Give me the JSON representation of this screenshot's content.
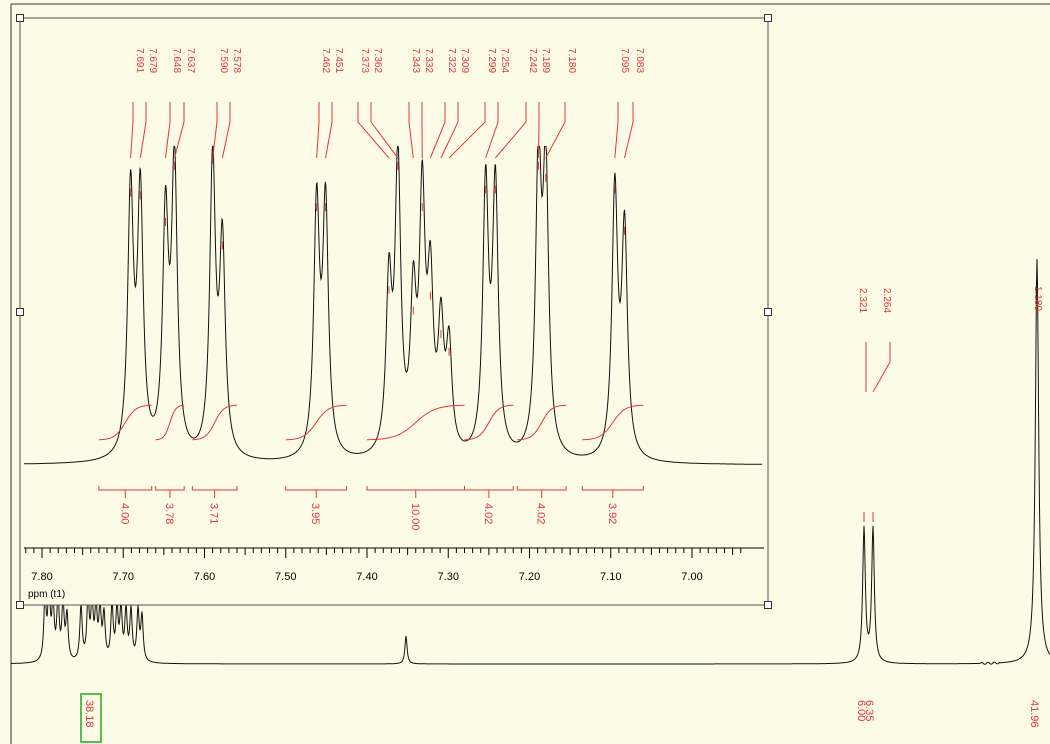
{
  "colors": {
    "background": "#fcfce6",
    "spectrum": "#111111",
    "annotation": "#e8333a",
    "frame": "#555555",
    "highlight_box": "#22aa22"
  },
  "chart_data": [
    {
      "type": "line",
      "title": "",
      "xlabel": "ppm (t1)",
      "ylabel": "",
      "x_reversed": true,
      "xlim": [
        7.82,
        6.93
      ],
      "ticks": [
        "7.80",
        "7.70",
        "7.60",
        "7.50",
        "7.40",
        "7.30",
        "7.20",
        "7.10",
        "7.00"
      ],
      "tick_values": [
        7.8,
        7.7,
        7.6,
        7.5,
        7.4,
        7.3,
        7.2,
        7.1,
        7.0
      ],
      "grid": false,
      "peak_labels": [
        "7.691",
        "7.679",
        "7.648",
        "7.637",
        "7.590",
        "7.578",
        "7.462",
        "7.451",
        "7.373",
        "7.362",
        "7.343",
        "7.332",
        "7.322",
        "7.309",
        "7.299",
        "7.254",
        "7.242",
        "7.189",
        "7.180",
        "7.095",
        "7.083"
      ],
      "peaks": [
        {
          "ppm": 7.691,
          "height": 0.89
        },
        {
          "ppm": 7.679,
          "height": 0.88
        },
        {
          "ppm": 7.648,
          "height": 0.79
        },
        {
          "ppm": 7.637,
          "height": 0.98
        },
        {
          "ppm": 7.59,
          "height": 1.0
        },
        {
          "ppm": 7.578,
          "height": 0.71
        },
        {
          "ppm": 7.462,
          "height": 0.84
        },
        {
          "ppm": 7.451,
          "height": 0.84
        },
        {
          "ppm": 7.373,
          "height": 0.56
        },
        {
          "ppm": 7.362,
          "height": 0.98
        },
        {
          "ppm": 7.343,
          "height": 0.49
        },
        {
          "ppm": 7.332,
          "height": 0.84
        },
        {
          "ppm": 7.322,
          "height": 0.54
        },
        {
          "ppm": 7.309,
          "height": 0.41
        },
        {
          "ppm": 7.299,
          "height": 0.35
        },
        {
          "ppm": 7.254,
          "height": 0.9
        },
        {
          "ppm": 7.242,
          "height": 0.9
        },
        {
          "ppm": 7.189,
          "height": 0.98
        },
        {
          "ppm": 7.18,
          "height": 0.94
        },
        {
          "ppm": 7.095,
          "height": 0.9
        },
        {
          "ppm": 7.083,
          "height": 0.76
        }
      ],
      "integrals": [
        {
          "value": "4.00",
          "from": 7.73,
          "to": 7.665
        },
        {
          "value": "3.78",
          "from": 7.66,
          "to": 7.625
        },
        {
          "value": "3.71",
          "from": 7.615,
          "to": 7.56
        },
        {
          "value": "3.95",
          "from": 7.5,
          "to": 7.425
        },
        {
          "value": "10.00",
          "from": 7.4,
          "to": 7.28
        },
        {
          "value": "4.02",
          "from": 7.28,
          "to": 7.22
        },
        {
          "value": "4.02",
          "from": 7.215,
          "to": 7.155
        },
        {
          "value": "3.92",
          "from": 7.135,
          "to": 7.06
        }
      ]
    },
    {
      "type": "line",
      "title": "",
      "peak_labels": [
        "2.321",
        "2.264",
        "1.180"
      ],
      "integrals": [
        {
          "value": "38.18",
          "highlighted": true
        },
        {
          "value": "6.00",
          "highlighted": false
        },
        {
          "value": "6.35",
          "highlighted": false
        },
        {
          "value": "41.96",
          "highlighted": false
        }
      ]
    }
  ]
}
